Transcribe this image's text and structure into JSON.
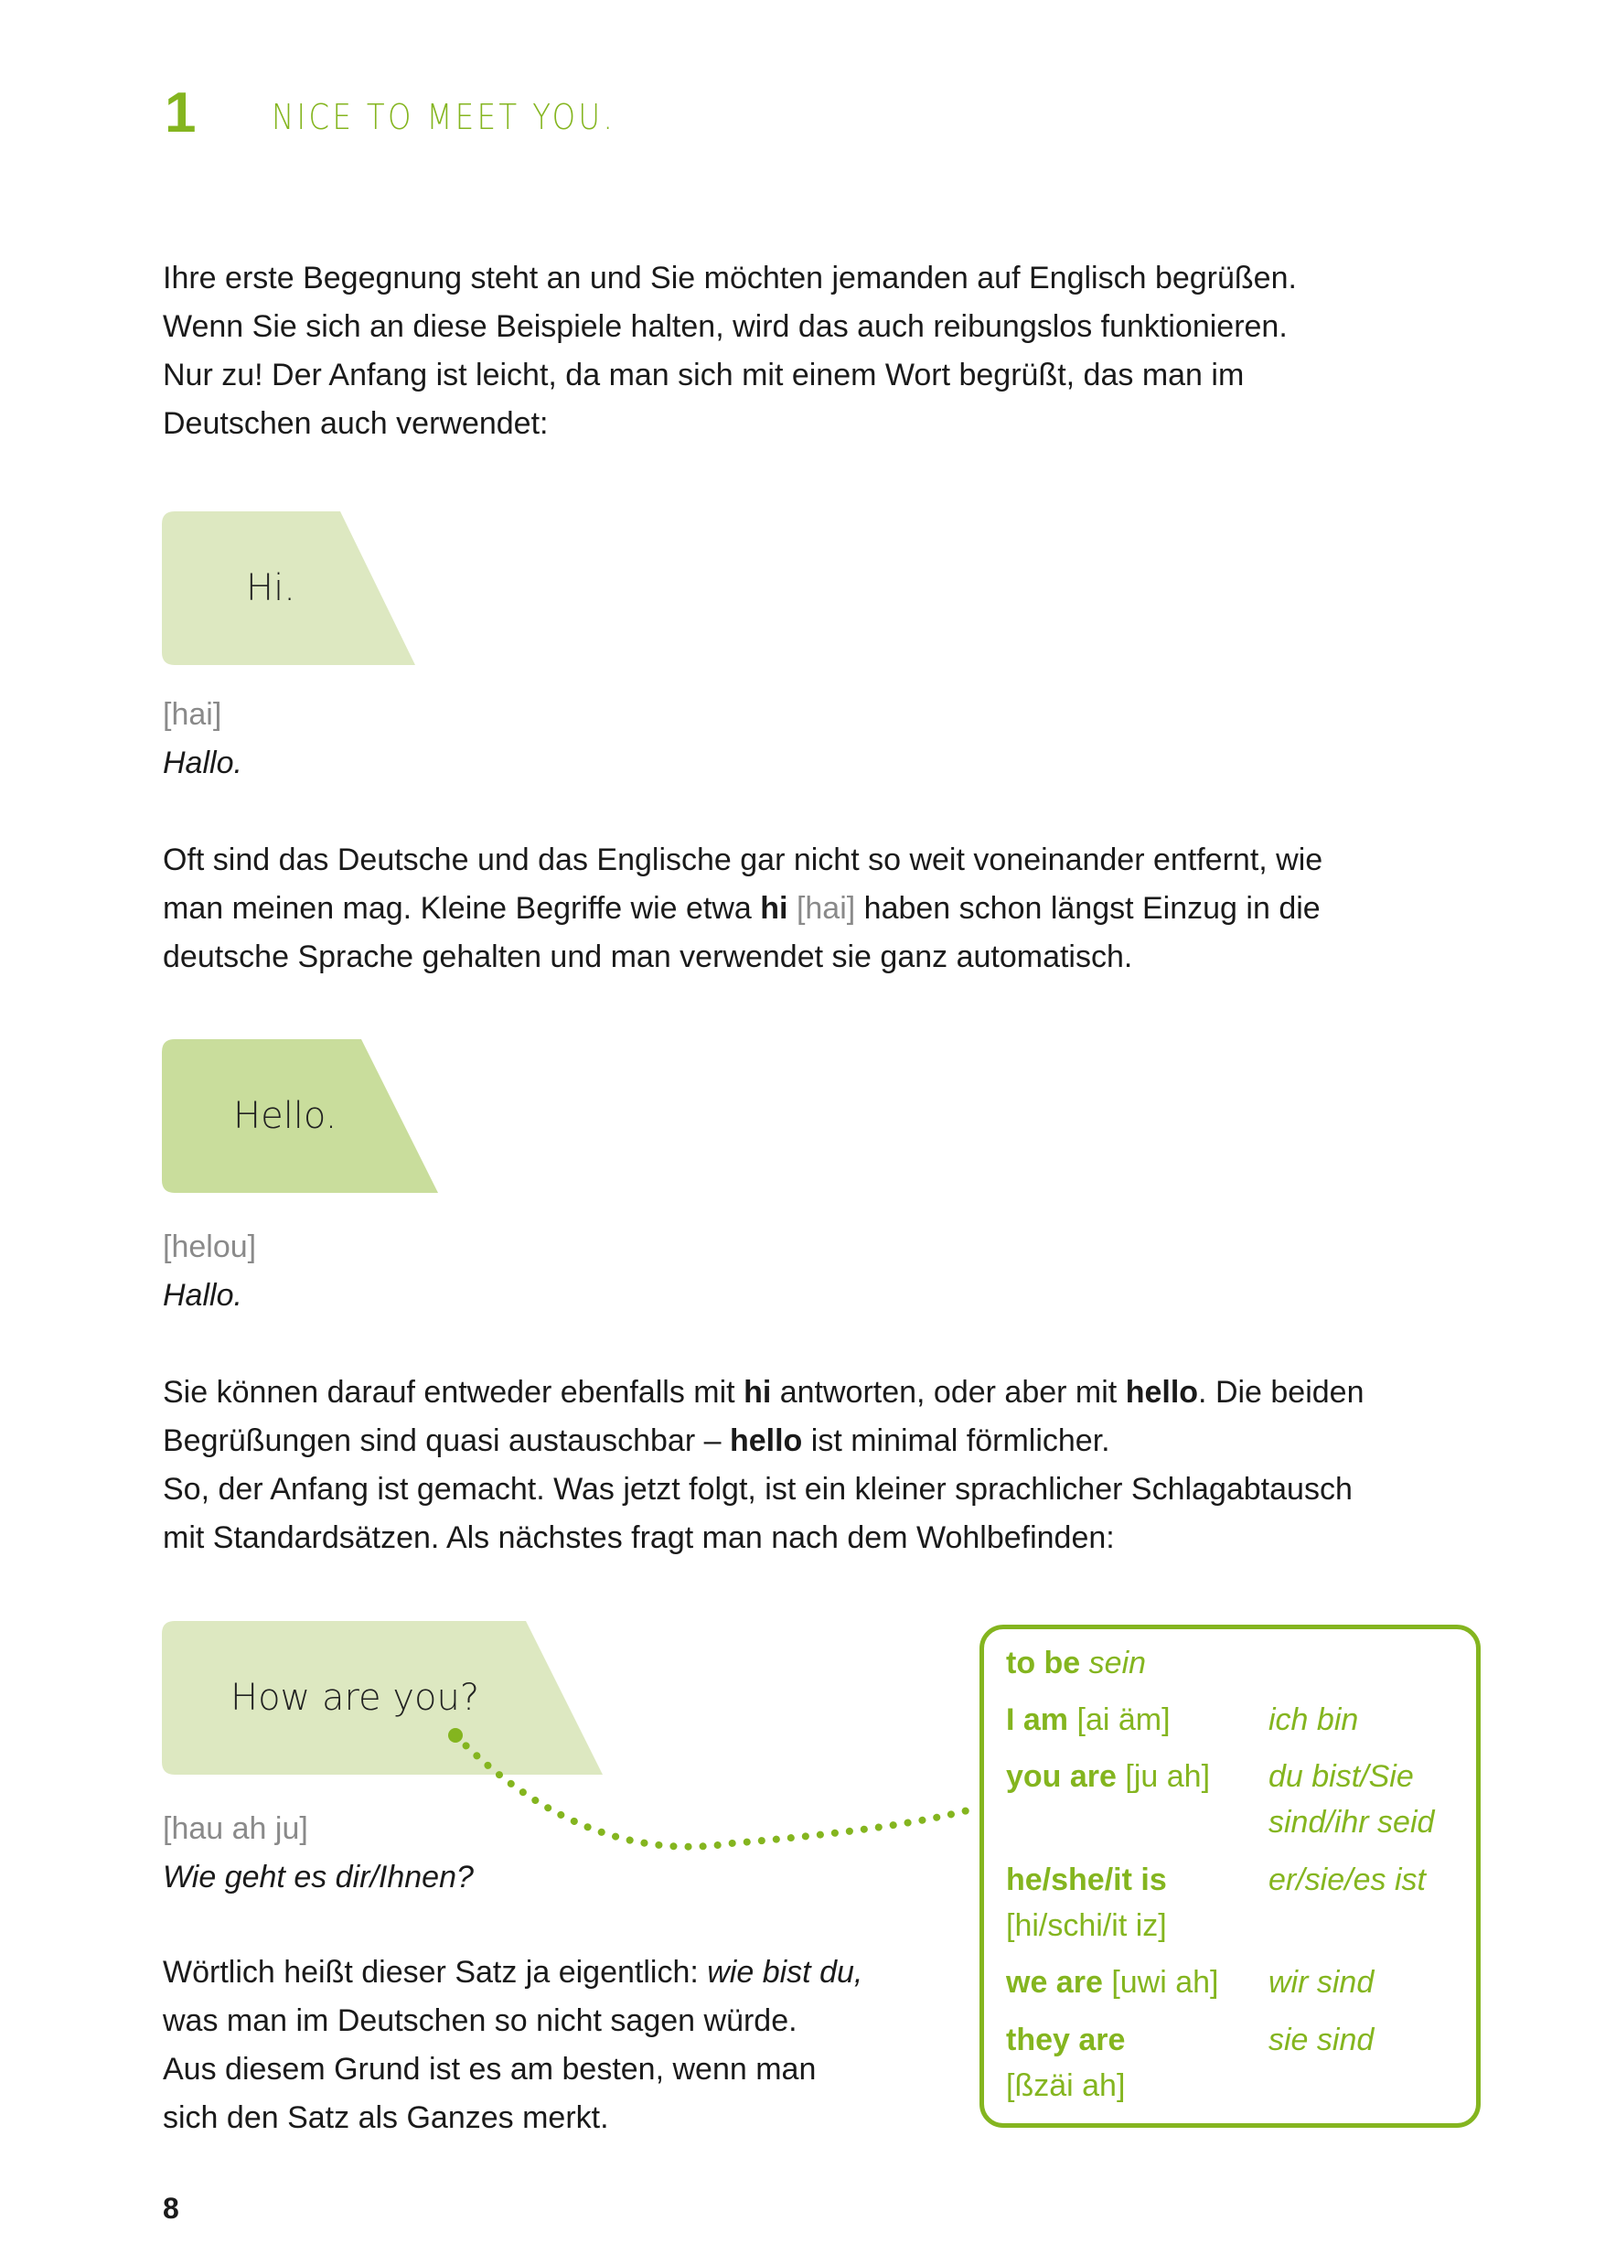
{
  "header": {
    "chapter_number": "1",
    "chapter_title": "NICE TO MEET YOU."
  },
  "intro": [
    "Ihre erste Begegnung steht an und Sie möchten jemanden auf Englisch begrüßen.",
    "Wenn Sie sich an diese Beispiele halten, wird das auch reibungslos funktionieren.",
    "Nur zu! Der Anfang ist leicht, da man sich mit einem Wort begrüßt, das man im",
    "Deutschen auch verwendet:"
  ],
  "phrases": [
    {
      "english": "Hi.",
      "pronunciation": "[hai]",
      "translation": "Hallo.",
      "color": "#dde8c1"
    },
    {
      "english": "Hello.",
      "pronunciation": "[helou]",
      "translation": "Hallo.",
      "color": "#c9dd9c"
    },
    {
      "english": "How are you?",
      "pronunciation": "[hau ah ju]",
      "translation": "Wie geht es dir/Ihnen?",
      "color": "#dde8c1"
    }
  ],
  "para2": {
    "l1": "Oft sind das Deutsche und das Englische gar nicht so weit voneinander entfernt, wie",
    "l2a": "man meinen mag. Kleine Begriffe wie etwa ",
    "l2b": "hi",
    "l2c": " [hai]",
    "l2d": " haben schon längst Einzug in die",
    "l3": "deutsche Sprache gehalten und man verwendet sie ganz automatisch."
  },
  "para3": {
    "l1a": "Sie können darauf entweder ebenfalls mit ",
    "l1b": "hi",
    "l1c": " antworten, oder aber mit ",
    "l1d": "hello",
    "l1e": ". Die beiden",
    "l2a": "Begrüßungen sind quasi austauschbar – ",
    "l2b": "hello",
    "l2c": " ist minimal förmlicher.",
    "l3": "So, der Anfang ist gemacht. Was jetzt folgt, ist ein kleiner sprachlicher Schlagabtausch",
    "l4": "mit Standardsätzen. Als nächstes fragt man nach dem Wohlbefinden:"
  },
  "para4": {
    "l1a": "Wörtlich heißt dieser Satz ja eigentlich: ",
    "l1b": "wie bist du,",
    "l2": "was man im Deutschen so nicht sagen würde.",
    "l3": "Aus diesem Grund ist es am besten, wenn man",
    "l4": "sich den Satz als Ganzes merkt."
  },
  "vocab_box": {
    "title_en": "to be",
    "title_de": "sein",
    "rows": [
      {
        "en": "I am",
        "pron": "[ai äm]",
        "de": "ich bin"
      },
      {
        "en": "you are",
        "pron": "[ju ah]",
        "de": "du bist/Sie",
        "de2": "sind/ihr seid"
      },
      {
        "en": "he/she/it is",
        "pron": "[hi/schi/it iz]",
        "de": "er/sie/es ist"
      },
      {
        "en": "we are",
        "pron": "[uwi ah]",
        "de": "wir sind"
      },
      {
        "en": "they are",
        "pron": "[ßzäi ah]",
        "de": "sie sind"
      }
    ],
    "accent": "#84b51f"
  },
  "footer": {
    "page_number": "8"
  }
}
